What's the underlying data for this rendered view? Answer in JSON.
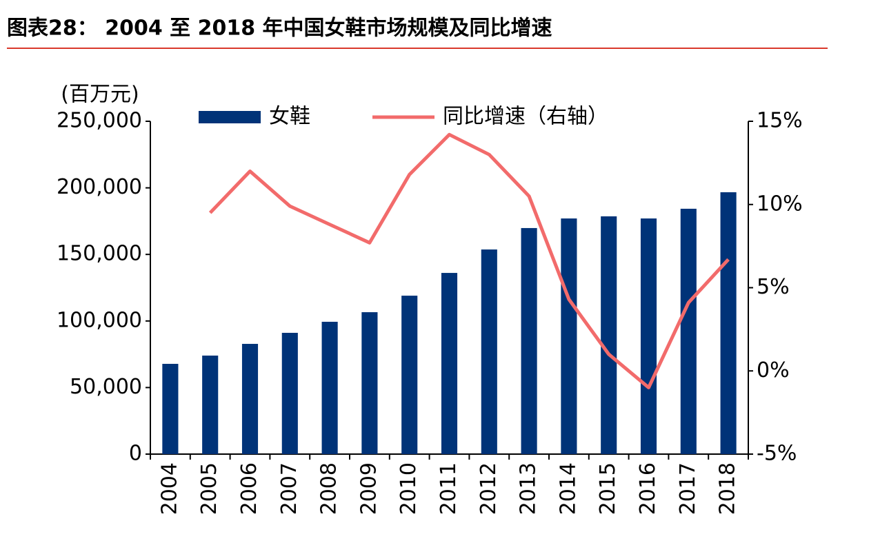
{
  "chart_data": {
    "type": "bar_line",
    "title": "图表28：  2004 至 2018 年中国女鞋市场规模及同比增速",
    "y_axis_label": "(百万元)",
    "categories": [
      "2004",
      "2005",
      "2006",
      "2007",
      "2008",
      "2009",
      "2010",
      "2011",
      "2012",
      "2013",
      "2014",
      "2015",
      "2016",
      "2017",
      "2018"
    ],
    "series": [
      {
        "name": "女鞋",
        "type": "bar",
        "color": "#003378",
        "values": [
          67800,
          74000,
          82800,
          91100,
          99400,
          106600,
          119000,
          136100,
          153700,
          169800,
          177000,
          178600,
          177000,
          184300,
          196700
        ]
      },
      {
        "name": "同比增速（右轴）",
        "type": "line",
        "axis": "y2",
        "color": "#f26b6b",
        "values": [
          null,
          9.5,
          12.0,
          9.9,
          8.8,
          7.7,
          11.8,
          14.2,
          13.0,
          10.5,
          4.3,
          1.0,
          -1.0,
          4.1,
          6.7
        ]
      }
    ],
    "ylim": [
      0,
      250000
    ],
    "yticks": [
      0,
      {
        "value": 50000,
        "label": "50,000"
      },
      {
        "value": 100000,
        "label": "100,000"
      },
      {
        "value": 150000,
        "label": "150,000"
      },
      {
        "value": 200000,
        "label": "200,000"
      },
      {
        "value": 250000,
        "label": "250,000"
      }
    ],
    "y2lim": [
      -5,
      15
    ],
    "y2ticks": [
      {
        "value": -5,
        "label": "-5%"
      },
      {
        "value": 0,
        "label": "0%"
      },
      {
        "value": 5,
        "label": "5%"
      },
      {
        "value": 10,
        "label": "10%"
      },
      {
        "value": 15,
        "label": "15%"
      }
    ],
    "grid": false,
    "legend": "top"
  }
}
